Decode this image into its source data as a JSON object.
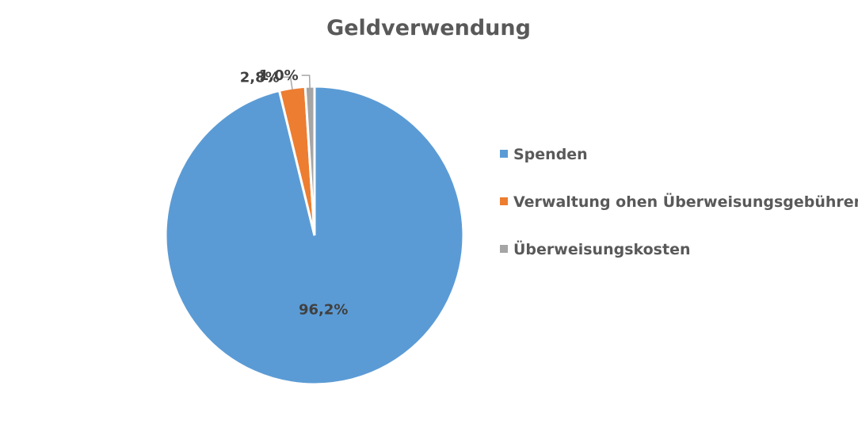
{
  "chart_data": {
    "type": "pie",
    "title": "Geldverwendung",
    "categories": [
      "Spenden",
      "Verwaltung ohen Überweisungsgebühren",
      "Überweisungskosten"
    ],
    "values": [
      96.2,
      2.8,
      1.0
    ],
    "data_labels": [
      "96,2%",
      "2,8%",
      "1,0%"
    ],
    "colors": [
      "#5b9bd5",
      "#ed7d31",
      "#a5a5a5"
    ],
    "legend_position": "right",
    "start_angle": "12 o'clock, clockwise"
  }
}
